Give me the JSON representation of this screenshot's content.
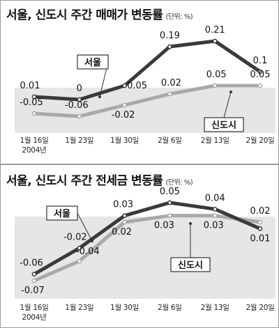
{
  "chart_data": [
    {
      "type": "line",
      "title": "서울, 신도시 주간 매매가 변동률",
      "unit": "(단위: %)",
      "categories": [
        "1월 16일",
        "1월 23일",
        "1월 30일",
        "2월 6일",
        "2월 13일",
        "2월 20일"
      ],
      "year_label": "2004년",
      "ylim": [
        -0.09,
        0.26
      ],
      "grid": false,
      "series": [
        {
          "name": "서울",
          "color": "#3a3a3a",
          "values": [
            0.01,
            0,
            0.05,
            0.19,
            0.21,
            0.1
          ],
          "labels": [
            "0.01",
            "0",
            "0.05",
            "0.19",
            "0.21",
            "0.1"
          ]
        },
        {
          "name": "신도시",
          "color": "#a9a9a9",
          "values": [
            -0.05,
            -0.06,
            -0.02,
            0.02,
            0.05,
            0.05
          ],
          "labels": [
            "-0.05",
            "-0.06",
            "-0.02",
            "0.02",
            "0.05",
            "0.05"
          ]
        }
      ]
    },
    {
      "type": "line",
      "title": "서울, 신도시 주간 전세금 변동률",
      "unit": "(단위: %)",
      "categories": [
        "1월 16일",
        "1월 23일",
        "1월 30일",
        "2월 6일",
        "2월 13일",
        "2월 20일"
      ],
      "year_label": "2004년",
      "ylim": [
        -0.085,
        0.065
      ],
      "grid": false,
      "series": [
        {
          "name": "서울",
          "color": "#3a3a3a",
          "values": [
            -0.06,
            -0.02,
            0.03,
            0.05,
            0.04,
            0.01
          ],
          "labels": [
            "-0.06",
            "-0.02",
            "0.03",
            "0.05",
            "0.04",
            "0.01"
          ]
        },
        {
          "name": "신도시",
          "color": "#a9a9a9",
          "values": [
            -0.07,
            -0.04,
            0.02,
            0.03,
            0.03,
            0.02
          ],
          "labels": [
            "-0.07",
            "-0.04",
            "0.02",
            "0.03",
            "0.03",
            "0.02"
          ]
        }
      ]
    }
  ]
}
